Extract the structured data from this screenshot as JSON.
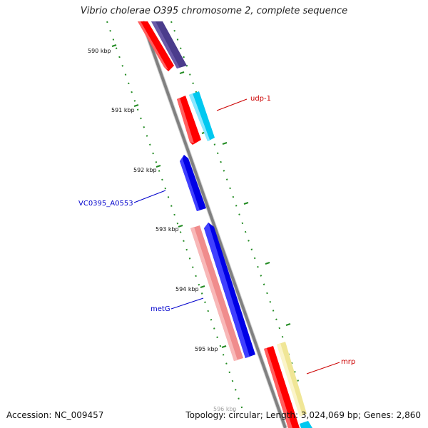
{
  "title": "Vibrio cholerae O395 chromosome 2, complete sequence",
  "footer": {
    "accession": "Accession: NC_009457",
    "summary": "Topology: circular; Length: 3,024,069 bp; Genes: 2,860"
  },
  "ticks": [
    "590 kbp",
    "591 kbp",
    "592 kbp",
    "593 kbp",
    "594 kbp",
    "595 kbp",
    "596 kbp"
  ],
  "gene_labels": [
    "udp-1",
    "VC0395_A0553",
    "metG",
    "mrp"
  ],
  "colors": {
    "backbone": "#808080",
    "tick_dots": "#228b22",
    "red": "#ff0000",
    "purple": "#4b3c8c",
    "cyan": "#00c8f0",
    "blue": "#0000e6",
    "pink": "#f08c8c",
    "yellow": "#f0e696",
    "label_red": "#cc0000",
    "label_blue": "#0000cc"
  }
}
